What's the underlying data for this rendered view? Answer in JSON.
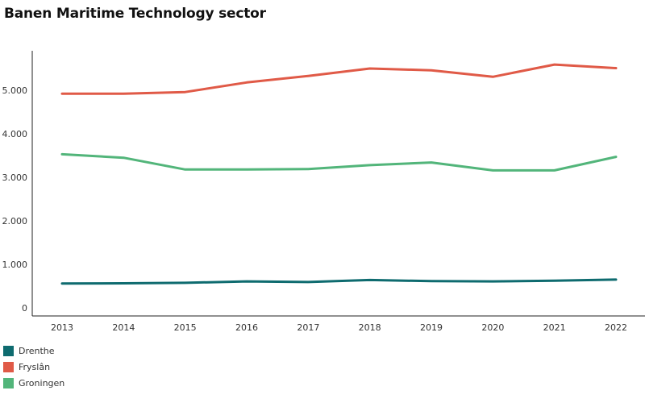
{
  "chart_data": {
    "type": "line",
    "title": "Banen Maritime Technology sector",
    "categories": [
      "2013",
      "2014",
      "2015",
      "2016",
      "2017",
      "2018",
      "2019",
      "2020",
      "2021",
      "2022"
    ],
    "y_ticks": [
      0,
      1000,
      2000,
      3000,
      4000,
      5000
    ],
    "y_tick_labels": [
      "0",
      "1.000",
      "2.000",
      "3.000",
      "4.000",
      "5.000"
    ],
    "ylim": [
      0,
      5800
    ],
    "xlabel": "",
    "ylabel": "",
    "grid": false,
    "legend_position": "bottom-left",
    "series": [
      {
        "name": "Drenthe",
        "color": "#0e6b6f",
        "values": [
          560,
          565,
          575,
          610,
          595,
          640,
          615,
          610,
          625,
          650
        ]
      },
      {
        "name": "Fryslân",
        "color": "#e05a47",
        "values": [
          4920,
          4920,
          4960,
          5180,
          5330,
          5500,
          5460,
          5310,
          5590,
          5510
        ]
      },
      {
        "name": "Groningen",
        "color": "#52b57a",
        "values": [
          3530,
          3450,
          3180,
          3180,
          3190,
          3280,
          3340,
          3160,
          3160,
          3470
        ]
      }
    ]
  }
}
